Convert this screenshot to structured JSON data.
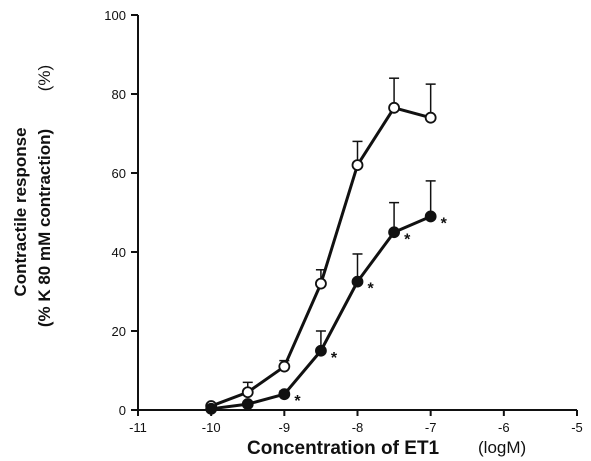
{
  "chart_data": {
    "type": "line",
    "title": "",
    "xlabel": "Concentration of ET1",
    "xlabel_unit": "(logM)",
    "ylabel_line1": "Contractile response",
    "ylabel_line2": "(% K 80 mM contraction)",
    "ylabel_unit": "(%)",
    "xlim": [
      -11,
      -5
    ],
    "ylim": [
      0,
      100
    ],
    "x_ticks": [
      -11,
      -10,
      -9,
      -8,
      -7,
      -6,
      -5
    ],
    "x_tick_labels": [
      "-11",
      "-10",
      "-9",
      "-8",
      "-7",
      "-6",
      "-5"
    ],
    "y_ticks": [
      0,
      20,
      40,
      60,
      80,
      100
    ],
    "y_tick_labels": [
      "0",
      "20",
      "40",
      "60",
      "80",
      "100"
    ],
    "grid": false,
    "series": [
      {
        "marker": "open-circle",
        "x": [
          -10,
          -9.5,
          -9,
          -8.5,
          -8,
          -7.5,
          -7
        ],
        "y": [
          1,
          4.5,
          11,
          32,
          62,
          76.5,
          74
        ],
        "err": [
          0.5,
          2.5,
          1.5,
          3.5,
          6,
          7.5,
          8.5
        ]
      },
      {
        "marker": "filled-circle",
        "x": [
          -10,
          -9.5,
          -9,
          -8.5,
          -8,
          -7.5,
          -7
        ],
        "y": [
          0.3,
          1.5,
          4,
          15,
          32.5,
          45,
          49
        ],
        "err": [
          0.3,
          0.5,
          0.8,
          5,
          7,
          7.5,
          9
        ],
        "significance_marker": "*",
        "significant_points": [
          false,
          false,
          true,
          true,
          true,
          true,
          true
        ]
      }
    ]
  }
}
